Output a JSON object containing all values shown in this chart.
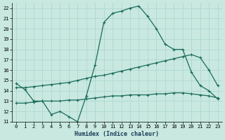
{
  "xlabel": "Humidex (Indice chaleur)",
  "xlim": [
    -0.5,
    23.5
  ],
  "ylim": [
    11,
    22.5
  ],
  "yticks": [
    11,
    12,
    13,
    14,
    15,
    16,
    17,
    18,
    19,
    20,
    21,
    22
  ],
  "xticks": [
    0,
    1,
    2,
    3,
    4,
    5,
    6,
    7,
    8,
    9,
    10,
    11,
    12,
    13,
    14,
    15,
    16,
    17,
    18,
    19,
    20,
    21,
    22,
    23
  ],
  "background_color": "#c8e8e0",
  "grid_color": "#a0ccC4",
  "line_color": "#1a6b5a",
  "line1_x": [
    0,
    1,
    2,
    3,
    4,
    5,
    6,
    7,
    8,
    9,
    10,
    11,
    12,
    13,
    14,
    15,
    16,
    17,
    18,
    19,
    20,
    21,
    22,
    23
  ],
  "line1_y": [
    14.7,
    14.1,
    13.0,
    13.0,
    11.7,
    12.0,
    11.5,
    11.0,
    13.5,
    16.5,
    20.6,
    21.5,
    21.7,
    22.0,
    22.2,
    21.2,
    20.0,
    18.5,
    18.0,
    18.0,
    15.8,
    14.5,
    14.0,
    13.2
  ],
  "line2_x": [
    0,
    1,
    2,
    3,
    4,
    5,
    6,
    7,
    8,
    9,
    10,
    11,
    12,
    13,
    14,
    15,
    16,
    17,
    18,
    19,
    20,
    21,
    22,
    23
  ],
  "line2_y": [
    14.3,
    14.3,
    14.4,
    14.5,
    14.6,
    14.7,
    14.8,
    15.0,
    15.2,
    15.4,
    15.5,
    15.7,
    15.9,
    16.1,
    16.3,
    16.5,
    16.7,
    16.9,
    17.1,
    17.3,
    17.5,
    17.2,
    16.0,
    14.5
  ],
  "line3_x": [
    0,
    1,
    2,
    3,
    4,
    5,
    6,
    7,
    8,
    9,
    10,
    11,
    12,
    13,
    14,
    15,
    16,
    17,
    18,
    19,
    20,
    21,
    22,
    23
  ],
  "line3_y": [
    12.8,
    12.8,
    12.9,
    13.0,
    13.0,
    13.0,
    13.1,
    13.1,
    13.2,
    13.3,
    13.4,
    13.5,
    13.5,
    13.6,
    13.6,
    13.6,
    13.7,
    13.7,
    13.8,
    13.8,
    13.7,
    13.6,
    13.5,
    13.3
  ]
}
